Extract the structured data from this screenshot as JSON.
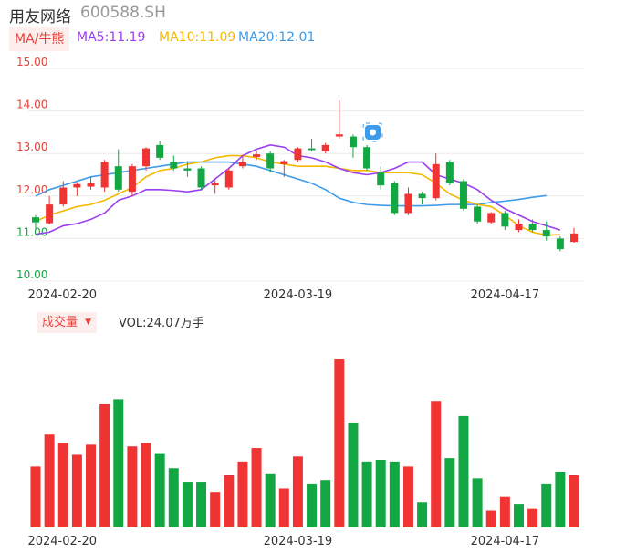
{
  "header": {
    "name": "用友网络",
    "code": "600588.SH"
  },
  "ma_legend": {
    "tag": "MA/牛熊",
    "items": [
      {
        "label": "MA5:11.19",
        "color": "#9b3ff0"
      },
      {
        "label": "MA10:11.09",
        "color": "#f5b800"
      },
      {
        "label": "MA20:12.01",
        "color": "#3d9be9"
      }
    ]
  },
  "volume_legend": {
    "tag": "成交量",
    "value": "VOL:24.07万手"
  },
  "marker_icon": "bell-icon",
  "colors": {
    "up": "#f03333",
    "down": "#12a742",
    "axis_red": "#e8403a",
    "axis_green": "#12a742"
  },
  "chart_data": [
    {
      "type": "candlestick",
      "y_ticks": [
        "15.00",
        "14.00",
        "13.00",
        "12.00",
        "11.00",
        "10.00"
      ],
      "ylim": [
        10,
        15
      ],
      "x_ticks": [
        {
          "label": "2024-02-20",
          "index": 2
        },
        {
          "label": "2024-03-19",
          "index": 19
        },
        {
          "label": "2024-04-17",
          "index": 34
        }
      ],
      "candles": [
        {
          "o": 11.5,
          "c": 11.38,
          "h": 11.55,
          "l": 11.2
        },
        {
          "o": 11.36,
          "c": 11.8,
          "h": 12.0,
          "l": 11.33
        },
        {
          "o": 11.8,
          "c": 12.2,
          "h": 12.35,
          "l": 11.75
        },
        {
          "o": 12.2,
          "c": 12.28,
          "h": 12.33,
          "l": 12.0
        },
        {
          "o": 12.22,
          "c": 12.3,
          "h": 12.45,
          "l": 12.15
        },
        {
          "o": 12.2,
          "c": 12.8,
          "h": 12.85,
          "l": 12.1
        },
        {
          "o": 12.7,
          "c": 12.15,
          "h": 13.1,
          "l": 12.1
        },
        {
          "o": 12.1,
          "c": 12.7,
          "h": 12.75,
          "l": 12.0
        },
        {
          "o": 12.7,
          "c": 13.12,
          "h": 13.15,
          "l": 12.6
        },
        {
          "o": 13.2,
          "c": 12.9,
          "h": 13.3,
          "l": 12.85
        },
        {
          "o": 12.8,
          "c": 12.65,
          "h": 12.95,
          "l": 12.6
        },
        {
          "o": 12.65,
          "c": 12.6,
          "h": 12.82,
          "l": 12.45
        },
        {
          "o": 12.65,
          "c": 12.2,
          "h": 12.7,
          "l": 12.15
        },
        {
          "o": 12.25,
          "c": 12.3,
          "h": 12.4,
          "l": 12.05
        },
        {
          "o": 12.2,
          "c": 12.6,
          "h": 12.65,
          "l": 12.15
        },
        {
          "o": 12.7,
          "c": 12.8,
          "h": 12.95,
          "l": 12.65
        },
        {
          "o": 12.92,
          "c": 12.98,
          "h": 13.05,
          "l": 12.85
        },
        {
          "o": 13.0,
          "c": 12.65,
          "h": 13.05,
          "l": 12.55
        },
        {
          "o": 12.75,
          "c": 12.82,
          "h": 12.85,
          "l": 12.45
        },
        {
          "o": 12.85,
          "c": 13.12,
          "h": 13.15,
          "l": 12.8
        },
        {
          "o": 13.12,
          "c": 13.08,
          "h": 13.35,
          "l": 13.05
        },
        {
          "o": 13.05,
          "c": 13.2,
          "h": 13.25,
          "l": 13.0
        },
        {
          "o": 13.4,
          "c": 13.45,
          "h": 14.25,
          "l": 13.35
        },
        {
          "o": 13.4,
          "c": 13.15,
          "h": 13.45,
          "l": 12.9
        },
        {
          "o": 13.15,
          "c": 12.65,
          "h": 13.2,
          "l": 12.6
        },
        {
          "o": 12.55,
          "c": 12.25,
          "h": 12.7,
          "l": 12.15
        },
        {
          "o": 12.3,
          "c": 11.6,
          "h": 12.35,
          "l": 11.55
        },
        {
          "o": 11.6,
          "c": 12.05,
          "h": 12.2,
          "l": 11.55
        },
        {
          "o": 12.05,
          "c": 11.95,
          "h": 12.1,
          "l": 11.8
        },
        {
          "o": 11.95,
          "c": 12.75,
          "h": 13.0,
          "l": 11.9
        },
        {
          "o": 12.8,
          "c": 12.3,
          "h": 12.85,
          "l": 12.25
        },
        {
          "o": 12.35,
          "c": 11.7,
          "h": 12.4,
          "l": 11.65
        },
        {
          "o": 11.75,
          "c": 11.4,
          "h": 11.8,
          "l": 11.35
        },
        {
          "o": 11.38,
          "c": 11.6,
          "h": 11.62,
          "l": 11.35
        },
        {
          "o": 11.6,
          "c": 11.28,
          "h": 11.65,
          "l": 11.2
        },
        {
          "o": 11.2,
          "c": 11.35,
          "h": 11.45,
          "l": 11.15
        },
        {
          "o": 11.35,
          "c": 11.2,
          "h": 11.45,
          "l": 11.15
        },
        {
          "o": 11.2,
          "c": 11.05,
          "h": 11.4,
          "l": 10.95
        },
        {
          "o": 11.0,
          "c": 10.75,
          "h": 11.05,
          "l": 10.7
        },
        {
          "o": 10.92,
          "c": 11.12,
          "h": 11.25,
          "l": 10.9
        }
      ],
      "ma5": [
        11.1,
        11.15,
        11.3,
        11.35,
        11.45,
        11.6,
        11.9,
        12.0,
        12.15,
        12.15,
        12.13,
        12.1,
        12.15,
        12.4,
        12.65,
        12.95,
        13.1,
        13.2,
        13.15,
        12.95,
        12.9,
        12.8,
        12.65,
        12.55,
        12.5,
        12.55,
        12.65,
        12.8,
        12.8,
        12.5,
        12.4,
        12.3,
        12.15,
        11.9,
        11.7,
        11.55,
        11.4,
        11.3,
        11.2
      ],
      "ma10": [
        11.4,
        11.55,
        11.65,
        11.75,
        11.8,
        11.9,
        12.05,
        12.2,
        12.45,
        12.6,
        12.65,
        12.75,
        12.8,
        12.9,
        12.95,
        12.95,
        12.9,
        12.8,
        12.75,
        12.7,
        12.7,
        12.7,
        12.65,
        12.6,
        12.6,
        12.55,
        12.55,
        12.55,
        12.5,
        12.3,
        12.05,
        11.9,
        11.8,
        11.75,
        11.55,
        11.3,
        11.15,
        11.08,
        11.09
      ],
      "ma20": [
        12.0,
        12.15,
        12.25,
        12.35,
        12.45,
        12.5,
        12.55,
        12.6,
        12.65,
        12.7,
        12.75,
        12.8,
        12.8,
        12.8,
        12.8,
        12.75,
        12.7,
        12.6,
        12.5,
        12.4,
        12.3,
        12.15,
        11.95,
        11.85,
        11.8,
        11.78,
        11.77,
        11.77,
        11.77,
        11.78,
        11.8,
        11.8,
        11.8,
        11.85,
        11.88,
        11.92,
        11.97,
        12.01
      ]
    },
    {
      "type": "bar",
      "label": "成交量",
      "volume": [
        0.36,
        0.55,
        0.5,
        0.43,
        0.49,
        0.73,
        0.76,
        0.48,
        0.5,
        0.44,
        0.35,
        0.27,
        0.27,
        0.21,
        0.31,
        0.39,
        0.47,
        0.32,
        0.23,
        0.42,
        0.26,
        0.28,
        1.0,
        0.62,
        0.39,
        0.4,
        0.39,
        0.36,
        0.15,
        0.75,
        0.41,
        0.66,
        0.29,
        0.1,
        0.18,
        0.14,
        0.11,
        0.26,
        0.33,
        0.31
      ],
      "up": [
        1,
        1,
        1,
        1,
        1,
        1,
        0,
        1,
        1,
        0,
        0,
        0,
        0,
        1,
        1,
        1,
        1,
        0,
        1,
        1,
        0,
        0,
        1,
        0,
        0,
        0,
        0,
        1,
        0,
        1,
        0,
        0,
        0,
        1,
        1,
        0,
        1,
        0,
        0,
        1
      ]
    }
  ]
}
